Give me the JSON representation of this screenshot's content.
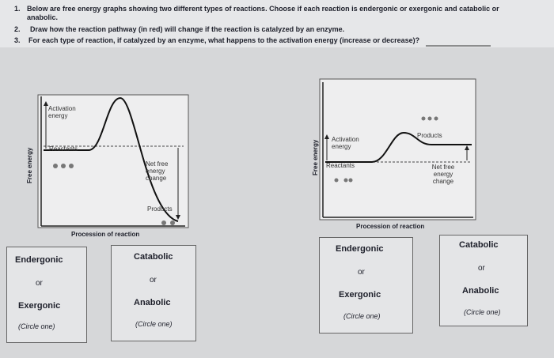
{
  "questions": [
    {
      "number": "1.",
      "text": "Below are free energy graphs showing two different types of reactions. Choose if each reaction is endergonic or exergonic and catabolic or anabolic."
    },
    {
      "number": "2.",
      "text": "Draw how the reaction pathway (in red) will change if the reaction is catalyzed by an enzyme."
    },
    {
      "number": "3.",
      "text": "For each type of reaction, if catalyzed by an enzyme, what happens to the activation energy (increase or decrease)?"
    }
  ],
  "graphs": [
    {
      "y_label": "Free energy",
      "x_label": "Procession of reaction",
      "activation": "Activation energy",
      "reactants": "Reactants",
      "net": "Net free energy change",
      "products": "Products"
    },
    {
      "y_label": "Free energy",
      "x_label": "Procession of reaction",
      "activation": "Activation energy",
      "reactants": "Reactants",
      "net": "Net free energy change",
      "products": "Products"
    }
  ],
  "choice_boxes": [
    {
      "option_a": "Endergonic",
      "or": "or",
      "option_b": "Exergonic",
      "instruction": "(Circle one)"
    },
    {
      "option_a": "Catabolic",
      "or": "or",
      "option_b": "Anabolic",
      "instruction": "(Circle one)"
    },
    {
      "option_a": "Endergonic",
      "or": "or",
      "option_b": "Exergonic",
      "instruction": "(Circle one)"
    },
    {
      "option_a": "Catabolic",
      "or": "or",
      "option_b": "Anabolic",
      "instruction": "(Circle one)"
    }
  ]
}
